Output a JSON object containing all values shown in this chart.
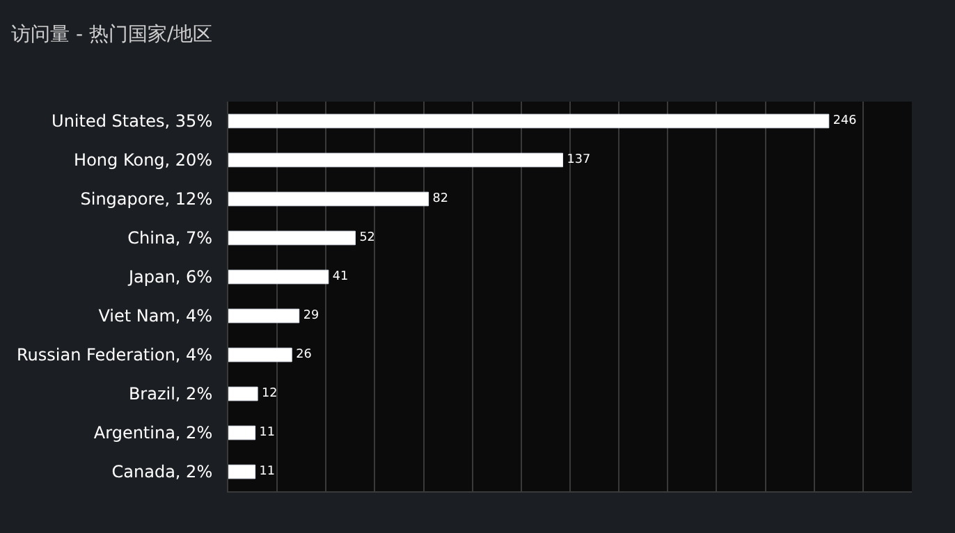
{
  "chart_data": {
    "type": "bar",
    "orientation": "horizontal",
    "title": "访问量 - 热门国家/地区",
    "categories": [
      "United States, 35%",
      "Hong Kong, 20%",
      "Singapore, 12%",
      "China, 7%",
      "Japan, 6%",
      "Viet Nam, 4%",
      "Russian Federation, 4%",
      "Brazil, 2%",
      "Argentina, 2%",
      "Canada, 2%"
    ],
    "values": [
      246,
      137,
      82,
      52,
      41,
      29,
      26,
      12,
      11,
      11
    ],
    "color": "#ffffff",
    "data_labels": true,
    "xlim": [
      0,
      280
    ],
    "xticks": [
      {
        "value": 0,
        "label": null
      },
      {
        "value": 20,
        "label": null
      },
      {
        "value": 40,
        "label": null
      },
      {
        "value": 60,
        "label": null
      },
      {
        "value": 80,
        "label": null
      },
      {
        "value": 100,
        "label": null
      },
      {
        "value": 120,
        "label": null
      },
      {
        "value": 140,
        "label": null
      },
      {
        "value": 160,
        "label": null
      },
      {
        "value": 180,
        "label": null
      },
      {
        "value": 200,
        "label": null
      },
      {
        "value": 220,
        "label": null
      },
      {
        "value": 240,
        "label": null
      },
      {
        "value": 260,
        "label": null
      },
      {
        "value": 280,
        "label": null
      }
    ],
    "grid": "x",
    "tick_labels": "y",
    "legend": false
  }
}
